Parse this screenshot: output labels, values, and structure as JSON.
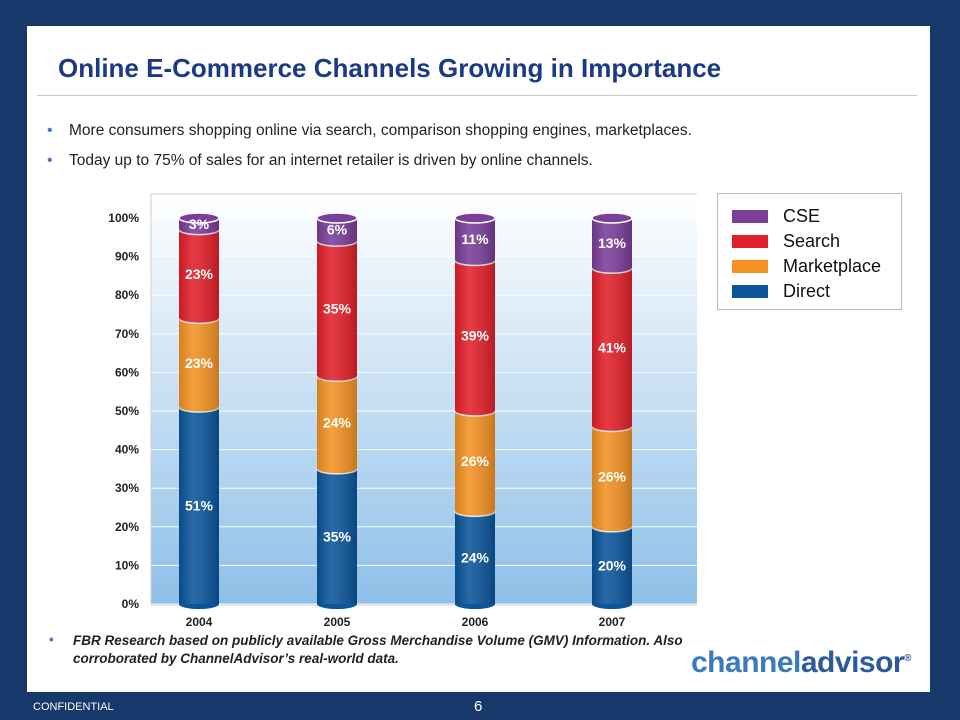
{
  "slide": {
    "title": "Online E-Commerce Channels Growing in Importance",
    "bullets": [
      "More consumers shopping online via search, comparison shopping engines, marketplaces.",
      "Today up to 75% of sales for an internet retailer is driven by online channels."
    ],
    "source": "FBR Research based on publicly available Gross Merchandise Volume (GMV) Information. Also corroborated by ChannelAdvisor’s real-world data.",
    "logo": {
      "part1": "channel",
      "part2": "advisor",
      "mark": "®"
    },
    "footer": {
      "confidential": "CONFIDENTIAL",
      "page": "6"
    }
  },
  "colors": {
    "background": "#16386a",
    "title": "#1b3a86",
    "cse": "#7b3e99",
    "search": "#e2202a",
    "marketplace": "#f39223",
    "direct": "#0b559b"
  },
  "chart_data": {
    "type": "bar",
    "stacked": true,
    "categories": [
      "2004",
      "2005",
      "2006",
      "2007"
    ],
    "y_ticks": [
      "0%",
      "10%",
      "20%",
      "30%",
      "40%",
      "50%",
      "60%",
      "70%",
      "80%",
      "90%",
      "100%"
    ],
    "ylim": [
      0,
      100
    ],
    "legend_position": "right",
    "series": [
      {
        "name": "Direct",
        "values": [
          51,
          35,
          24,
          20
        ],
        "labels": [
          "51%",
          "35%",
          "24%",
          "20%"
        ],
        "color": "#0b559b"
      },
      {
        "name": "Marketplace",
        "values": [
          23,
          24,
          26,
          26
        ],
        "labels": [
          "23%",
          "24%",
          "26%",
          "26%"
        ],
        "color": "#f39223"
      },
      {
        "name": "Search",
        "values": [
          23,
          35,
          39,
          41
        ],
        "labels": [
          "23%",
          "35%",
          "39%",
          "41%"
        ],
        "color": "#e2202a"
      },
      {
        "name": "CSE",
        "values": [
          3,
          6,
          11,
          13
        ],
        "labels": [
          "3%",
          "6%",
          "11%",
          "13%"
        ],
        "color": "#7b3e99"
      }
    ],
    "legend_order": [
      "CSE",
      "Search",
      "Marketplace",
      "Direct"
    ]
  }
}
